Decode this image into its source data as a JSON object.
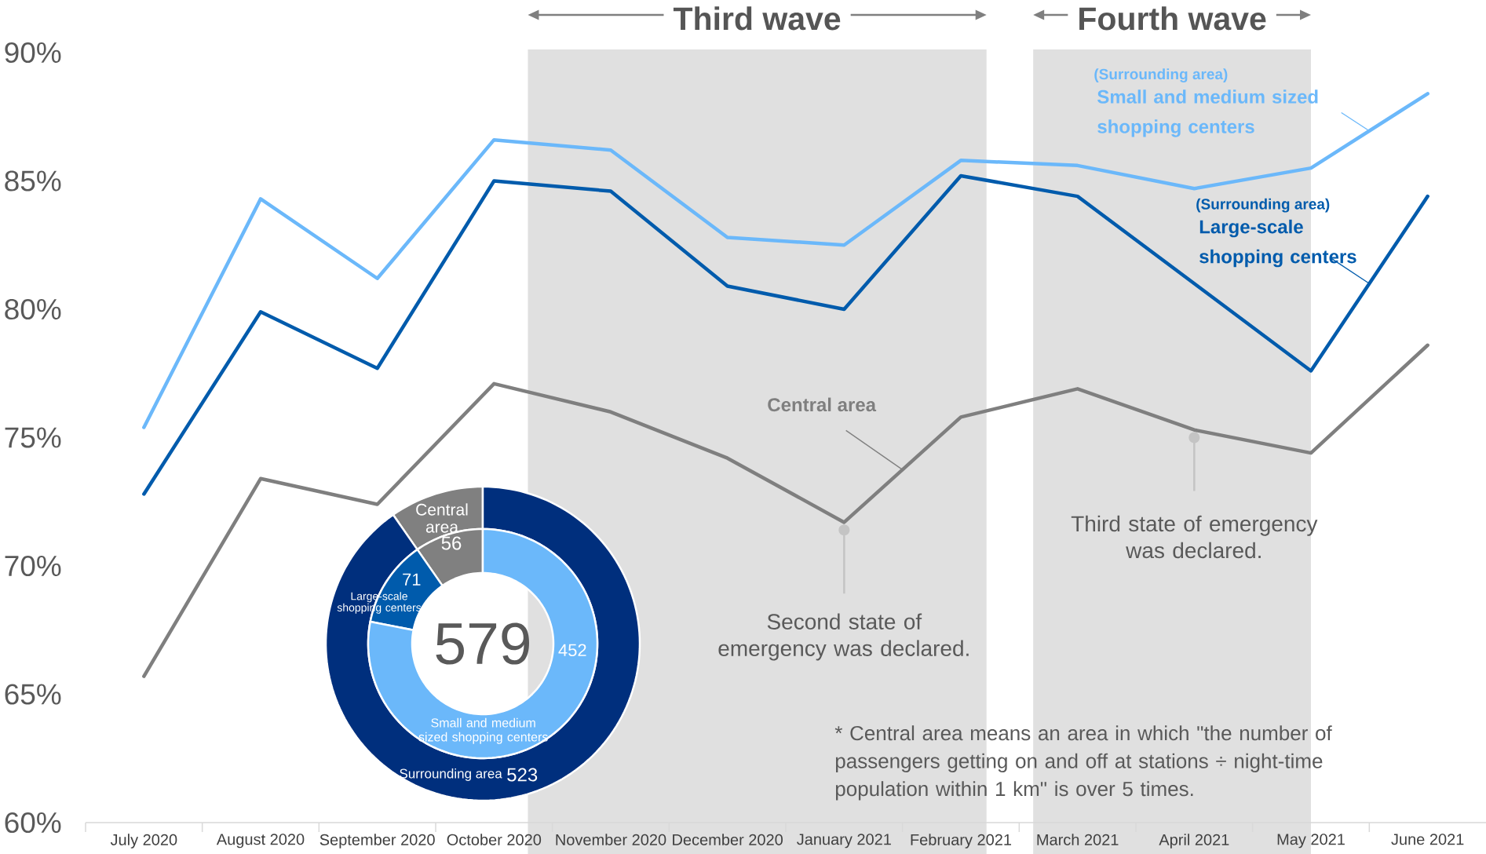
{
  "chart_data": [
    {
      "type": "line",
      "categories": [
        "July 2020",
        "August 2020",
        "September 2020",
        "October 2020",
        "November 2020",
        "December 2020",
        "January 2021",
        "February 2021",
        "March 2021",
        "April 2021",
        "May 2021",
        "June 2021"
      ],
      "series": [
        {
          "name": "Small and medium sized shopping centers",
          "color": "#6BB8FA",
          "values": [
            75.4,
            84.3,
            81.2,
            86.6,
            86.2,
            82.8,
            82.5,
            85.8,
            85.6,
            84.7,
            85.5,
            88.4
          ]
        },
        {
          "name": "Large-scale shopping centers",
          "color": "#005BAC",
          "values": [
            72.8,
            79.9,
            77.7,
            85.0,
            84.6,
            80.9,
            80.0,
            85.2,
            84.4,
            81.0,
            77.6,
            84.4
          ]
        },
        {
          "name": "Central area",
          "color": "#7F7F7F",
          "values": [
            65.7,
            73.4,
            72.4,
            77.1,
            76.0,
            74.2,
            71.7,
            75.8,
            76.9,
            75.3,
            74.4,
            78.6
          ]
        }
      ],
      "ylim": [
        60,
        90
      ],
      "yticks": [
        {
          "value": 60,
          "label": "60%"
        },
        {
          "value": 65,
          "label": "65%"
        },
        {
          "value": 70,
          "label": "70%"
        },
        {
          "value": 75,
          "label": "75%"
        },
        {
          "value": 80,
          "label": "80%"
        },
        {
          "value": 85,
          "label": "85%"
        },
        {
          "value": 90,
          "label": "90%"
        }
      ],
      "bands": [
        {
          "axis": "x",
          "from": "October 2020",
          "to": "February 2021",
          "label": "Third wave",
          "color": "#E0E0E0"
        },
        {
          "axis": "x",
          "from": "March 2021",
          "to": "May 2021",
          "label": "Fourth wave",
          "color": "#E0E0E0"
        }
      ],
      "annotations": [
        "(Surrounding area)",
        "(Surrounding area)",
        {
          "text": "Second state of emergency was declared.",
          "x": "January 2021",
          "y": 71.4
        },
        {
          "text": "Third state of emergency was declared.",
          "x": "April 2021",
          "y": 75.0
        },
        "* Central area means an area in which \"the number of passengers getting on and off at stations ÷ night-time population within 1 km\" is over 5 times."
      ]
    },
    {
      "type": "donut",
      "categories": [
        null,
        "Surrounding area"
      ],
      "values": [
        56,
        523
      ],
      "colors": [
        "#808080",
        "#002F7D"
      ],
      "value_labels": [
        null,
        "523"
      ]
    },
    {
      "type": "donut",
      "categories": [
        "Central area",
        "Large-scale shopping centers",
        "Small and medium sized shopping centers"
      ],
      "values": [
        56,
        71,
        452
      ],
      "colors": [
        "#808080",
        "#005BAC",
        "#6BB8FA"
      ],
      "data_labels": true,
      "annotations": [
        "579"
      ]
    }
  ]
}
